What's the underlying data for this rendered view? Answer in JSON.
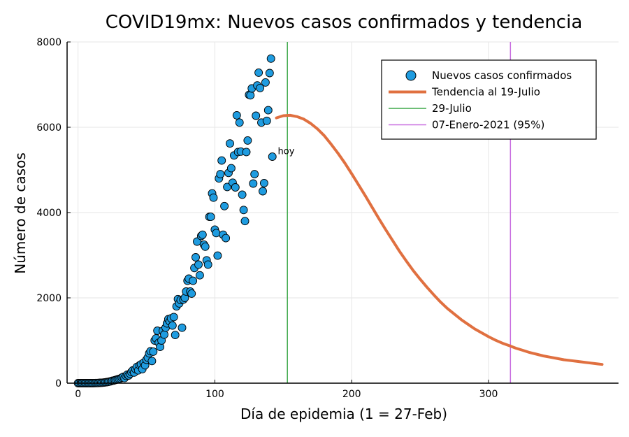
{
  "chart_data": {
    "type": "scatter",
    "title": "COVID19mx: Nuevos casos confirmados y tendencia",
    "xlabel": "Día de epidemia (1 = 27-Feb)",
    "ylabel": "Número de casos",
    "xlim": [
      -8,
      395
    ],
    "ylim": [
      0,
      8000
    ],
    "xticks": [
      0,
      100,
      200,
      300
    ],
    "yticks": [
      0,
      2000,
      4000,
      6000,
      8000
    ],
    "grid": true,
    "legend_position": "top-right",
    "legend": [
      {
        "label": "Nuevos casos confirmados",
        "kind": "marker",
        "color": "#1f9ce0"
      },
      {
        "label": "Tendencia al 19-Julio",
        "kind": "thick-line",
        "color": "#e07040"
      },
      {
        "label": "29-Julio",
        "kind": "line",
        "color": "#3fa84a"
      },
      {
        "label": "07-Enero-2021 (95%)",
        "kind": "line",
        "color": "#c86ee0"
      }
    ],
    "series": [
      {
        "name": "Nuevos casos confirmados",
        "type": "scatter",
        "color": "#1f9ce0",
        "points": [
          [
            0,
            0
          ],
          [
            1,
            0
          ],
          [
            2,
            0
          ],
          [
            3,
            0
          ],
          [
            4,
            0
          ],
          [
            5,
            0
          ],
          [
            6,
            0
          ],
          [
            7,
            0
          ],
          [
            8,
            0
          ],
          [
            9,
            0
          ],
          [
            10,
            0
          ],
          [
            11,
            0
          ],
          [
            12,
            2
          ],
          [
            13,
            3
          ],
          [
            14,
            4
          ],
          [
            15,
            5
          ],
          [
            16,
            8
          ],
          [
            17,
            10
          ],
          [
            18,
            12
          ],
          [
            19,
            15
          ],
          [
            20,
            20
          ],
          [
            21,
            25
          ],
          [
            22,
            30
          ],
          [
            23,
            38
          ],
          [
            24,
            45
          ],
          [
            25,
            55
          ],
          [
            26,
            60
          ],
          [
            27,
            70
          ],
          [
            28,
            80
          ],
          [
            29,
            90
          ],
          [
            30,
            100
          ],
          [
            31,
            110
          ],
          [
            32,
            130
          ],
          [
            33,
            150
          ],
          [
            34,
            120
          ],
          [
            35,
            170
          ],
          [
            36,
            200
          ],
          [
            37,
            180
          ],
          [
            38,
            220
          ],
          [
            39,
            260
          ],
          [
            40,
            300
          ],
          [
            41,
            250
          ],
          [
            42,
            330
          ],
          [
            43,
            380
          ],
          [
            44,
            300
          ],
          [
            45,
            420
          ],
          [
            46,
            440
          ],
          [
            47,
            330
          ],
          [
            48,
            480
          ],
          [
            49,
            420
          ],
          [
            50,
            550
          ],
          [
            51,
            600
          ],
          [
            52,
            700
          ],
          [
            53,
            750
          ],
          [
            54,
            520
          ],
          [
            55,
            740
          ],
          [
            56,
            1000
          ],
          [
            57,
            1050
          ],
          [
            58,
            1230
          ],
          [
            59,
            950
          ],
          [
            60,
            850
          ],
          [
            61,
            1000
          ],
          [
            62,
            1230
          ],
          [
            63,
            1140
          ],
          [
            64,
            1300
          ],
          [
            65,
            1400
          ],
          [
            66,
            1500
          ],
          [
            67,
            1450
          ],
          [
            68,
            1520
          ],
          [
            69,
            1350
          ],
          [
            70,
            1550
          ],
          [
            71,
            1130
          ],
          [
            72,
            1800
          ],
          [
            73,
            1970
          ],
          [
            74,
            1870
          ],
          [
            75,
            1950
          ],
          [
            76,
            1300
          ],
          [
            77,
            1960
          ],
          [
            78,
            2000
          ],
          [
            79,
            2150
          ],
          [
            80,
            2400
          ],
          [
            81,
            2450
          ],
          [
            82,
            2150
          ],
          [
            83,
            2100
          ],
          [
            84,
            2400
          ],
          [
            85,
            2700
          ],
          [
            86,
            2950
          ],
          [
            87,
            3320
          ],
          [
            88,
            2780
          ],
          [
            89,
            2530
          ],
          [
            90,
            3450
          ],
          [
            91,
            3480
          ],
          [
            92,
            3250
          ],
          [
            93,
            3200
          ],
          [
            94,
            2880
          ],
          [
            95,
            2780
          ],
          [
            96,
            3900
          ],
          [
            97,
            3900
          ],
          [
            98,
            4450
          ],
          [
            99,
            4350
          ],
          [
            100,
            3600
          ],
          [
            101,
            3520
          ],
          [
            102,
            2990
          ],
          [
            103,
            4800
          ],
          [
            104,
            4900
          ],
          [
            105,
            5220
          ],
          [
            106,
            3480
          ],
          [
            107,
            4150
          ],
          [
            108,
            3400
          ],
          [
            109,
            4600
          ],
          [
            110,
            4930
          ],
          [
            111,
            5620
          ],
          [
            112,
            5040
          ],
          [
            113,
            4700
          ],
          [
            114,
            5340
          ],
          [
            115,
            4590
          ],
          [
            116,
            6280
          ],
          [
            117,
            5420
          ],
          [
            118,
            6110
          ],
          [
            119,
            5430
          ],
          [
            120,
            4420
          ],
          [
            121,
            4060
          ],
          [
            122,
            3800
          ],
          [
            123,
            5420
          ],
          [
            124,
            5690
          ],
          [
            125,
            6760
          ],
          [
            126,
            6750
          ],
          [
            127,
            6910
          ],
          [
            128,
            4680
          ],
          [
            129,
            4900
          ],
          [
            130,
            6270
          ],
          [
            131,
            6980
          ],
          [
            132,
            7280
          ],
          [
            133,
            6920
          ],
          [
            134,
            6110
          ],
          [
            135,
            4500
          ],
          [
            136,
            4690
          ],
          [
            137,
            7050
          ],
          [
            138,
            6150
          ],
          [
            139,
            6400
          ],
          [
            140,
            7270
          ],
          [
            141,
            7610
          ],
          [
            142,
            5310
          ]
        ]
      },
      {
        "name": "Tendencia al 19-Julio",
        "type": "line",
        "color": "#e07040",
        "points": [
          [
            145,
            6220
          ],
          [
            150,
            6270
          ],
          [
            155,
            6280
          ],
          [
            160,
            6250
          ],
          [
            165,
            6190
          ],
          [
            170,
            6090
          ],
          [
            175,
            5960
          ],
          [
            180,
            5800
          ],
          [
            185,
            5600
          ],
          [
            190,
            5390
          ],
          [
            195,
            5160
          ],
          [
            200,
            4910
          ],
          [
            205,
            4650
          ],
          [
            210,
            4390
          ],
          [
            215,
            4120
          ],
          [
            220,
            3850
          ],
          [
            225,
            3590
          ],
          [
            230,
            3340
          ],
          [
            235,
            3090
          ],
          [
            240,
            2860
          ],
          [
            245,
            2640
          ],
          [
            250,
            2440
          ],
          [
            255,
            2250
          ],
          [
            260,
            2070
          ],
          [
            265,
            1900
          ],
          [
            270,
            1750
          ],
          [
            275,
            1620
          ],
          [
            280,
            1490
          ],
          [
            285,
            1380
          ],
          [
            290,
            1270
          ],
          [
            295,
            1180
          ],
          [
            300,
            1090
          ],
          [
            305,
            1010
          ],
          [
            310,
            940
          ],
          [
            315,
            880
          ],
          [
            320,
            820
          ],
          [
            325,
            770
          ],
          [
            330,
            720
          ],
          [
            335,
            680
          ],
          [
            340,
            640
          ],
          [
            345,
            610
          ],
          [
            350,
            580
          ],
          [
            355,
            550
          ],
          [
            360,
            530
          ],
          [
            365,
            510
          ],
          [
            370,
            490
          ],
          [
            375,
            470
          ],
          [
            380,
            450
          ],
          [
            383,
            440
          ]
        ]
      }
    ],
    "vlines": [
      {
        "name": "29-Julio",
        "x": 153,
        "color": "#3fa84a"
      },
      {
        "name": "07-Enero-2021 (95%)",
        "x": 316,
        "color": "#c86ee0"
      }
    ],
    "annotations": [
      {
        "text": "hoy",
        "x": 146,
        "y": 5340
      }
    ]
  }
}
